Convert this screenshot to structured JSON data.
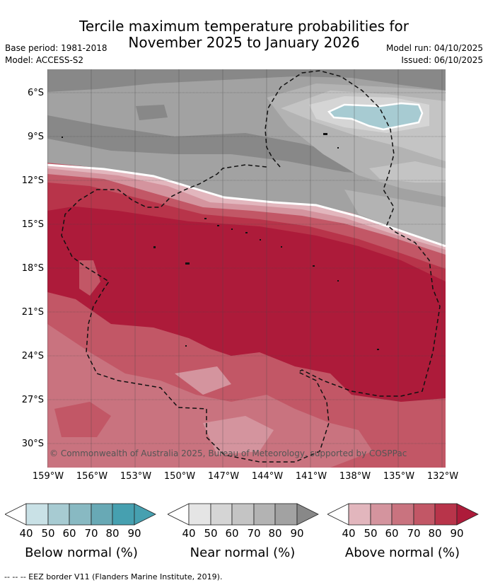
{
  "title": {
    "line1": "Tercile maximum temperature probabilities for",
    "line2": "November 2025 to January 2026"
  },
  "meta": {
    "base_period": "Base period: 1981-2018",
    "model": "Model: ACCESS-S2",
    "model_run": "Model run: 04/10/2025",
    "issued": "Issued: 06/10/2025"
  },
  "map": {
    "copyright": "© Commonwealth of Australia 2025, Bureau of Meteorology, supported by COSPPac",
    "lat_labels": [
      "6°S",
      "9°S",
      "12°S",
      "15°S",
      "18°S",
      "21°S",
      "24°S",
      "27°S",
      "30°S"
    ],
    "lon_labels": [
      "159°W",
      "156°W",
      "153°W",
      "150°W",
      "147°W",
      "144°W",
      "141°W",
      "138°W",
      "135°W",
      "132°W"
    ]
  },
  "legend": {
    "ticks": [
      "40",
      "50",
      "60",
      "70",
      "80",
      "90"
    ],
    "below": {
      "label": "Below normal (%)",
      "colors": [
        "#ffffff",
        "#c9e1e6",
        "#a7cbd2",
        "#88b9c2",
        "#68a9b5",
        "#46a0b0"
      ]
    },
    "near": {
      "label": "Near normal (%)",
      "colors": [
        "#ffffff",
        "#e5e5e5",
        "#d5d5d5",
        "#c4c4c4",
        "#b3b3b3",
        "#a2a2a2",
        "#888888"
      ]
    },
    "above": {
      "label": "Above normal (%)",
      "colors": [
        "#ffffff",
        "#e2b6bd",
        "#d4949e",
        "#c9737f",
        "#c25766",
        "#b8344a",
        "#ad1b3a"
      ]
    }
  },
  "footer": "--  --  -- EEZ border V11 (Flanders Marine Institute, 2019)."
}
